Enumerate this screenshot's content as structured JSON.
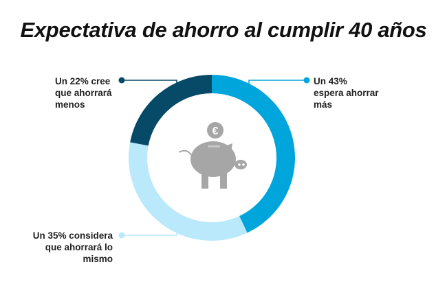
{
  "chart_data": {
    "type": "pie",
    "donut": true,
    "title": "Expectativa de ahorro al cumplir 40 años",
    "slices": [
      {
        "name": "más",
        "value": 43,
        "color": "#00a6db",
        "label": "Un 43%\nespera ahorrar\nmás"
      },
      {
        "name": "lo mismo",
        "value": 35,
        "color": "#b9e9fb",
        "label": "Un 35% considera\nque ahorrará lo mismo"
      },
      {
        "name": "menos",
        "value": 22,
        "color": "#064a68",
        "label": "Un 22% cree\nque ahorrará\nmenos"
      }
    ],
    "center_icon": "piggy-bank-euro-icon"
  }
}
